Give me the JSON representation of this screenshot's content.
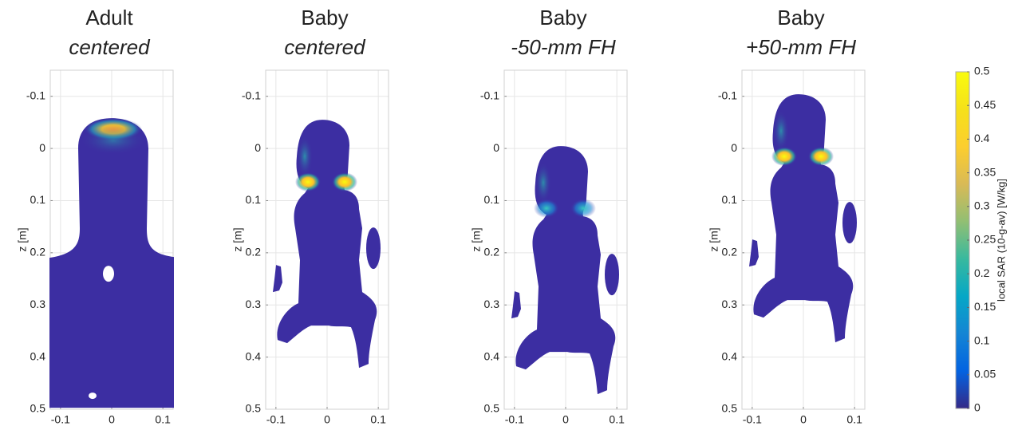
{
  "chart_data": [
    {
      "type": "heatmap",
      "title": "Adult",
      "subtitle": "centered",
      "ylabel": "z [m]",
      "xlim": [
        -0.12,
        0.12
      ],
      "xticks": [
        -0.1,
        0,
        0.1
      ],
      "ylim": [
        -0.15,
        0.5
      ],
      "yticks": [
        -0.1,
        0,
        0.1,
        0.2,
        0.3,
        0.4,
        0.5
      ],
      "y_reversed": true,
      "grid": true
    },
    {
      "type": "heatmap",
      "title": "Baby",
      "subtitle": "centered",
      "ylabel": "z [m]",
      "xlim": [
        -0.12,
        0.12
      ],
      "xticks": [
        -0.1,
        0,
        0.1
      ],
      "ylim": [
        -0.15,
        0.5
      ],
      "yticks": [
        -0.1,
        0,
        0.1,
        0.2,
        0.3,
        0.4,
        0.5
      ],
      "y_reversed": true,
      "grid": true
    },
    {
      "type": "heatmap",
      "title": "Baby",
      "subtitle": "-50-mm FH",
      "ylabel": "z [m]",
      "xlim": [
        -0.12,
        0.12
      ],
      "xticks": [
        -0.1,
        0,
        0.1
      ],
      "ylim": [
        -0.15,
        0.5
      ],
      "yticks": [
        -0.1,
        0,
        0.1,
        0.2,
        0.3,
        0.4,
        0.5
      ],
      "y_reversed": true,
      "grid": true
    },
    {
      "type": "heatmap",
      "title": "Baby",
      "subtitle": "+50-mm FH",
      "ylabel": "z [m]",
      "xlim": [
        -0.12,
        0.12
      ],
      "xticks": [
        -0.1,
        0,
        0.1
      ],
      "ylim": [
        -0.15,
        0.5
      ],
      "yticks": [
        -0.1,
        0,
        0.1,
        0.2,
        0.3,
        0.4,
        0.5
      ],
      "y_reversed": true,
      "grid": true
    }
  ],
  "colorbar": {
    "label": "local SAR (10-g-av) [W/kg]",
    "lim": [
      0,
      0.5
    ],
    "ticks": [
      0,
      0.05,
      0.1,
      0.15,
      0.2,
      0.25,
      0.3,
      0.35,
      0.4,
      0.45,
      0.5
    ],
    "colormap": "parula"
  }
}
